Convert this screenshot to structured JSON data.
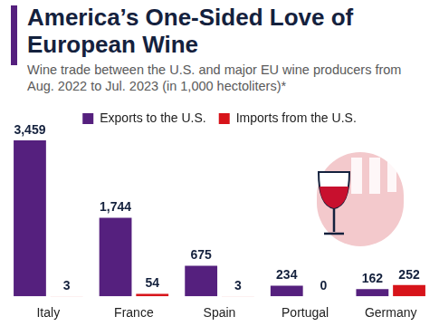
{
  "chart_data": {
    "type": "bar",
    "title": "America’s One-Sided Love of European Wine",
    "subtitle": "Wine trade between the U.S. and major EU wine producers from Aug. 2022 to Jul. 2023 (in 1,000 hectoliters)*",
    "categories": [
      "Italy",
      "France",
      "Spain",
      "Portugal",
      "Germany"
    ],
    "series": [
      {
        "name": "Exports to the U.S.",
        "color": "#55207e",
        "values": [
          3459,
          1744,
          675,
          234,
          162
        ],
        "value_labels": [
          "3,459",
          "1,744",
          "675",
          "234",
          "162"
        ]
      },
      {
        "name": "Imports from the U.S.",
        "color": "#d7141a",
        "values": [
          3,
          54,
          3,
          0,
          252
        ]
      }
    ],
    "ylim": [
      0,
      3600
    ],
    "grid": false,
    "legend": "top",
    "data_labels": true,
    "tick_labels": "x"
  }
}
